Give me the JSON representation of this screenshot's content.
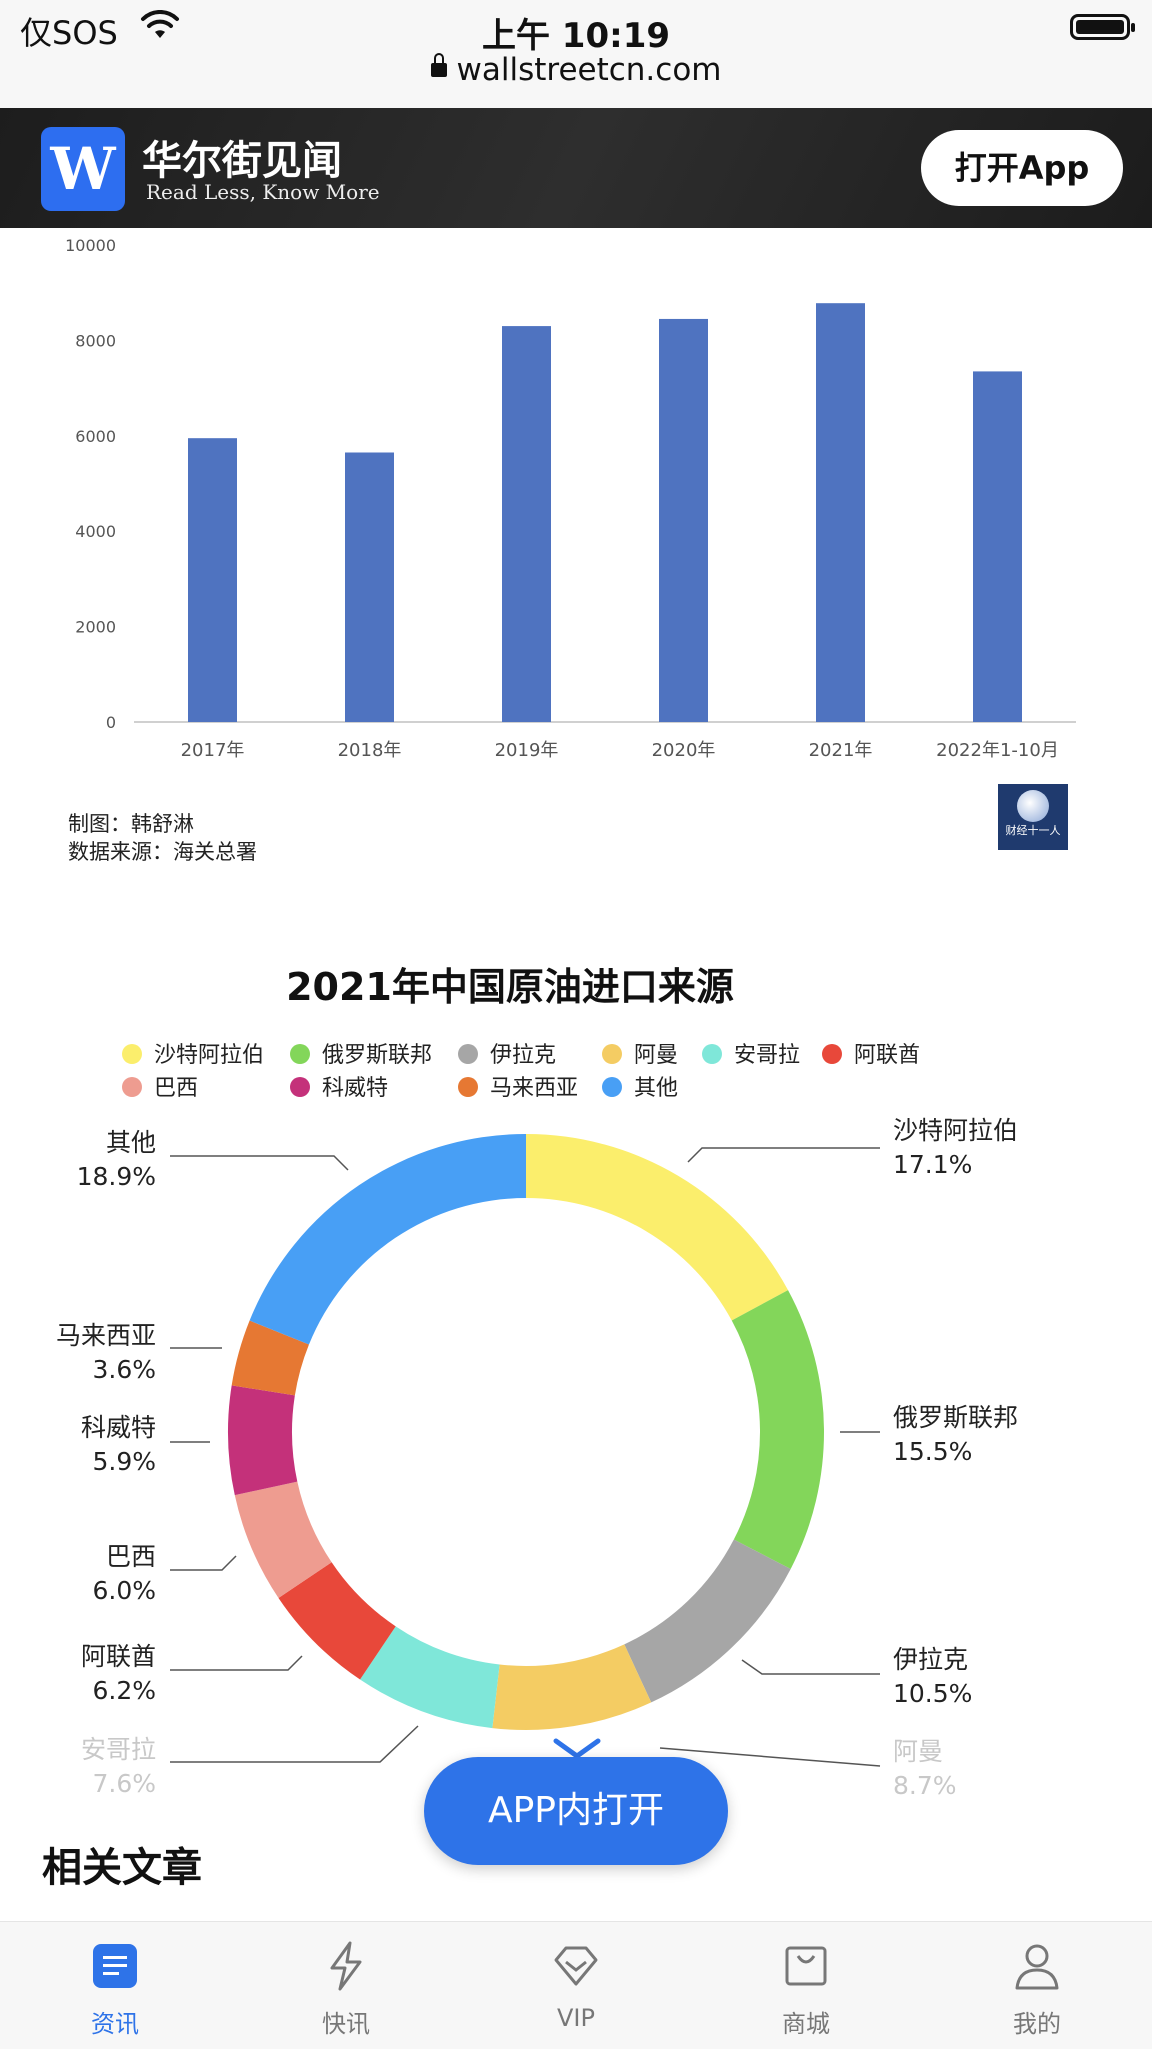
{
  "status_bar": {
    "carrier": "仅SOS",
    "time": "上午 10:19",
    "url": "wallstreetcn.com"
  },
  "header": {
    "logo_mark": "W",
    "brand_name": "华尔街见闻",
    "slogan": "Read Less, Know More",
    "open_app_label": "打开App"
  },
  "bar_chart_credit": {
    "made_by": "制图：韩舒淋",
    "source": "数据来源：海关总署",
    "badge": "财经十一人"
  },
  "chart_data": [
    {
      "type": "bar",
      "title": "",
      "categories": [
        "2017年",
        "2018年",
        "2019年",
        "2020年",
        "2021年",
        "2022年1-10月"
      ],
      "values": [
        5950,
        5650,
        8300,
        8450,
        8780,
        7350
      ],
      "ylim": [
        0,
        10000
      ],
      "yticks": [
        "0",
        "2000",
        "4000",
        "6000",
        "8000",
        "10000"
      ],
      "color": "#4f73c0",
      "xlabel": "",
      "ylabel": ""
    },
    {
      "type": "pie",
      "title": "2021年中国原油进口来源",
      "slices": [
        {
          "name": "沙特阿拉伯",
          "value": 17.1,
          "label": "17.1%",
          "color": "#fbee6c"
        },
        {
          "name": "俄罗斯联邦",
          "value": 15.5,
          "label": "15.5%",
          "color": "#83d65a"
        },
        {
          "name": "伊拉克",
          "value": 10.5,
          "label": "10.5%",
          "color": "#a6a6a6"
        },
        {
          "name": "阿曼",
          "value": 8.7,
          "label": "8.7%",
          "color": "#f4cc63"
        },
        {
          "name": "安哥拉",
          "value": 7.6,
          "label": "7.6%",
          "color": "#7fe7d9"
        },
        {
          "name": "阿联酋",
          "value": 6.2,
          "label": "6.2%",
          "color": "#e8483a"
        },
        {
          "name": "巴西",
          "value": 6.0,
          "label": "6.0%",
          "color": "#ee9c90"
        },
        {
          "name": "科威特",
          "value": 5.9,
          "label": "5.9%",
          "color": "#c4317a"
        },
        {
          "name": "马来西亚",
          "value": 3.6,
          "label": "3.6%",
          "color": "#e67833"
        },
        {
          "name": "其他",
          "value": 18.9,
          "label": "18.9%",
          "color": "#489ff5"
        }
      ]
    }
  ],
  "floating_button": {
    "label": "APP内打开"
  },
  "related_title": "相关文章",
  "tabbar": {
    "items": [
      {
        "label": "资讯",
        "icon": "news-icon"
      },
      {
        "label": "快讯",
        "icon": "flash-icon"
      },
      {
        "label": "VIP",
        "icon": "vip-diamond-icon"
      },
      {
        "label": "商城",
        "icon": "shop-bag-icon"
      },
      {
        "label": "我的",
        "icon": "profile-icon"
      }
    ]
  }
}
